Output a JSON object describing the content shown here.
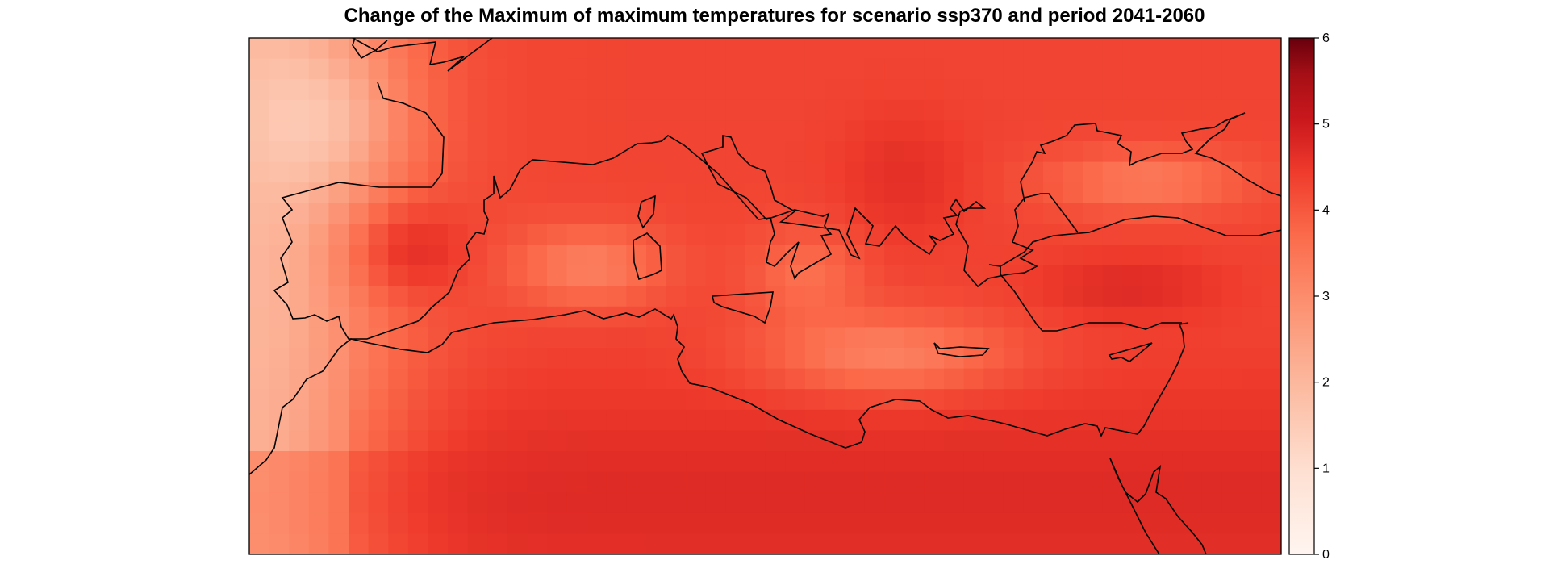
{
  "title": "Change of the Maximum of maximum temperatures for scenario ssp370 and period 2041-2060",
  "colorbar": {
    "ticks": [
      "0",
      "1",
      "2",
      "3",
      "4",
      "5",
      "6"
    ],
    "range": [
      0,
      6
    ],
    "colors": [
      "#fff5f0",
      "#fee0d2",
      "#fcbba1",
      "#fc9272",
      "#fb6a4a",
      "#ef3b2c",
      "#cb181d",
      "#a50f15",
      "#67000d"
    ]
  },
  "map": {
    "region": "Mediterranean",
    "land_outline_color": "#000000",
    "frame_color": "#000000"
  }
}
